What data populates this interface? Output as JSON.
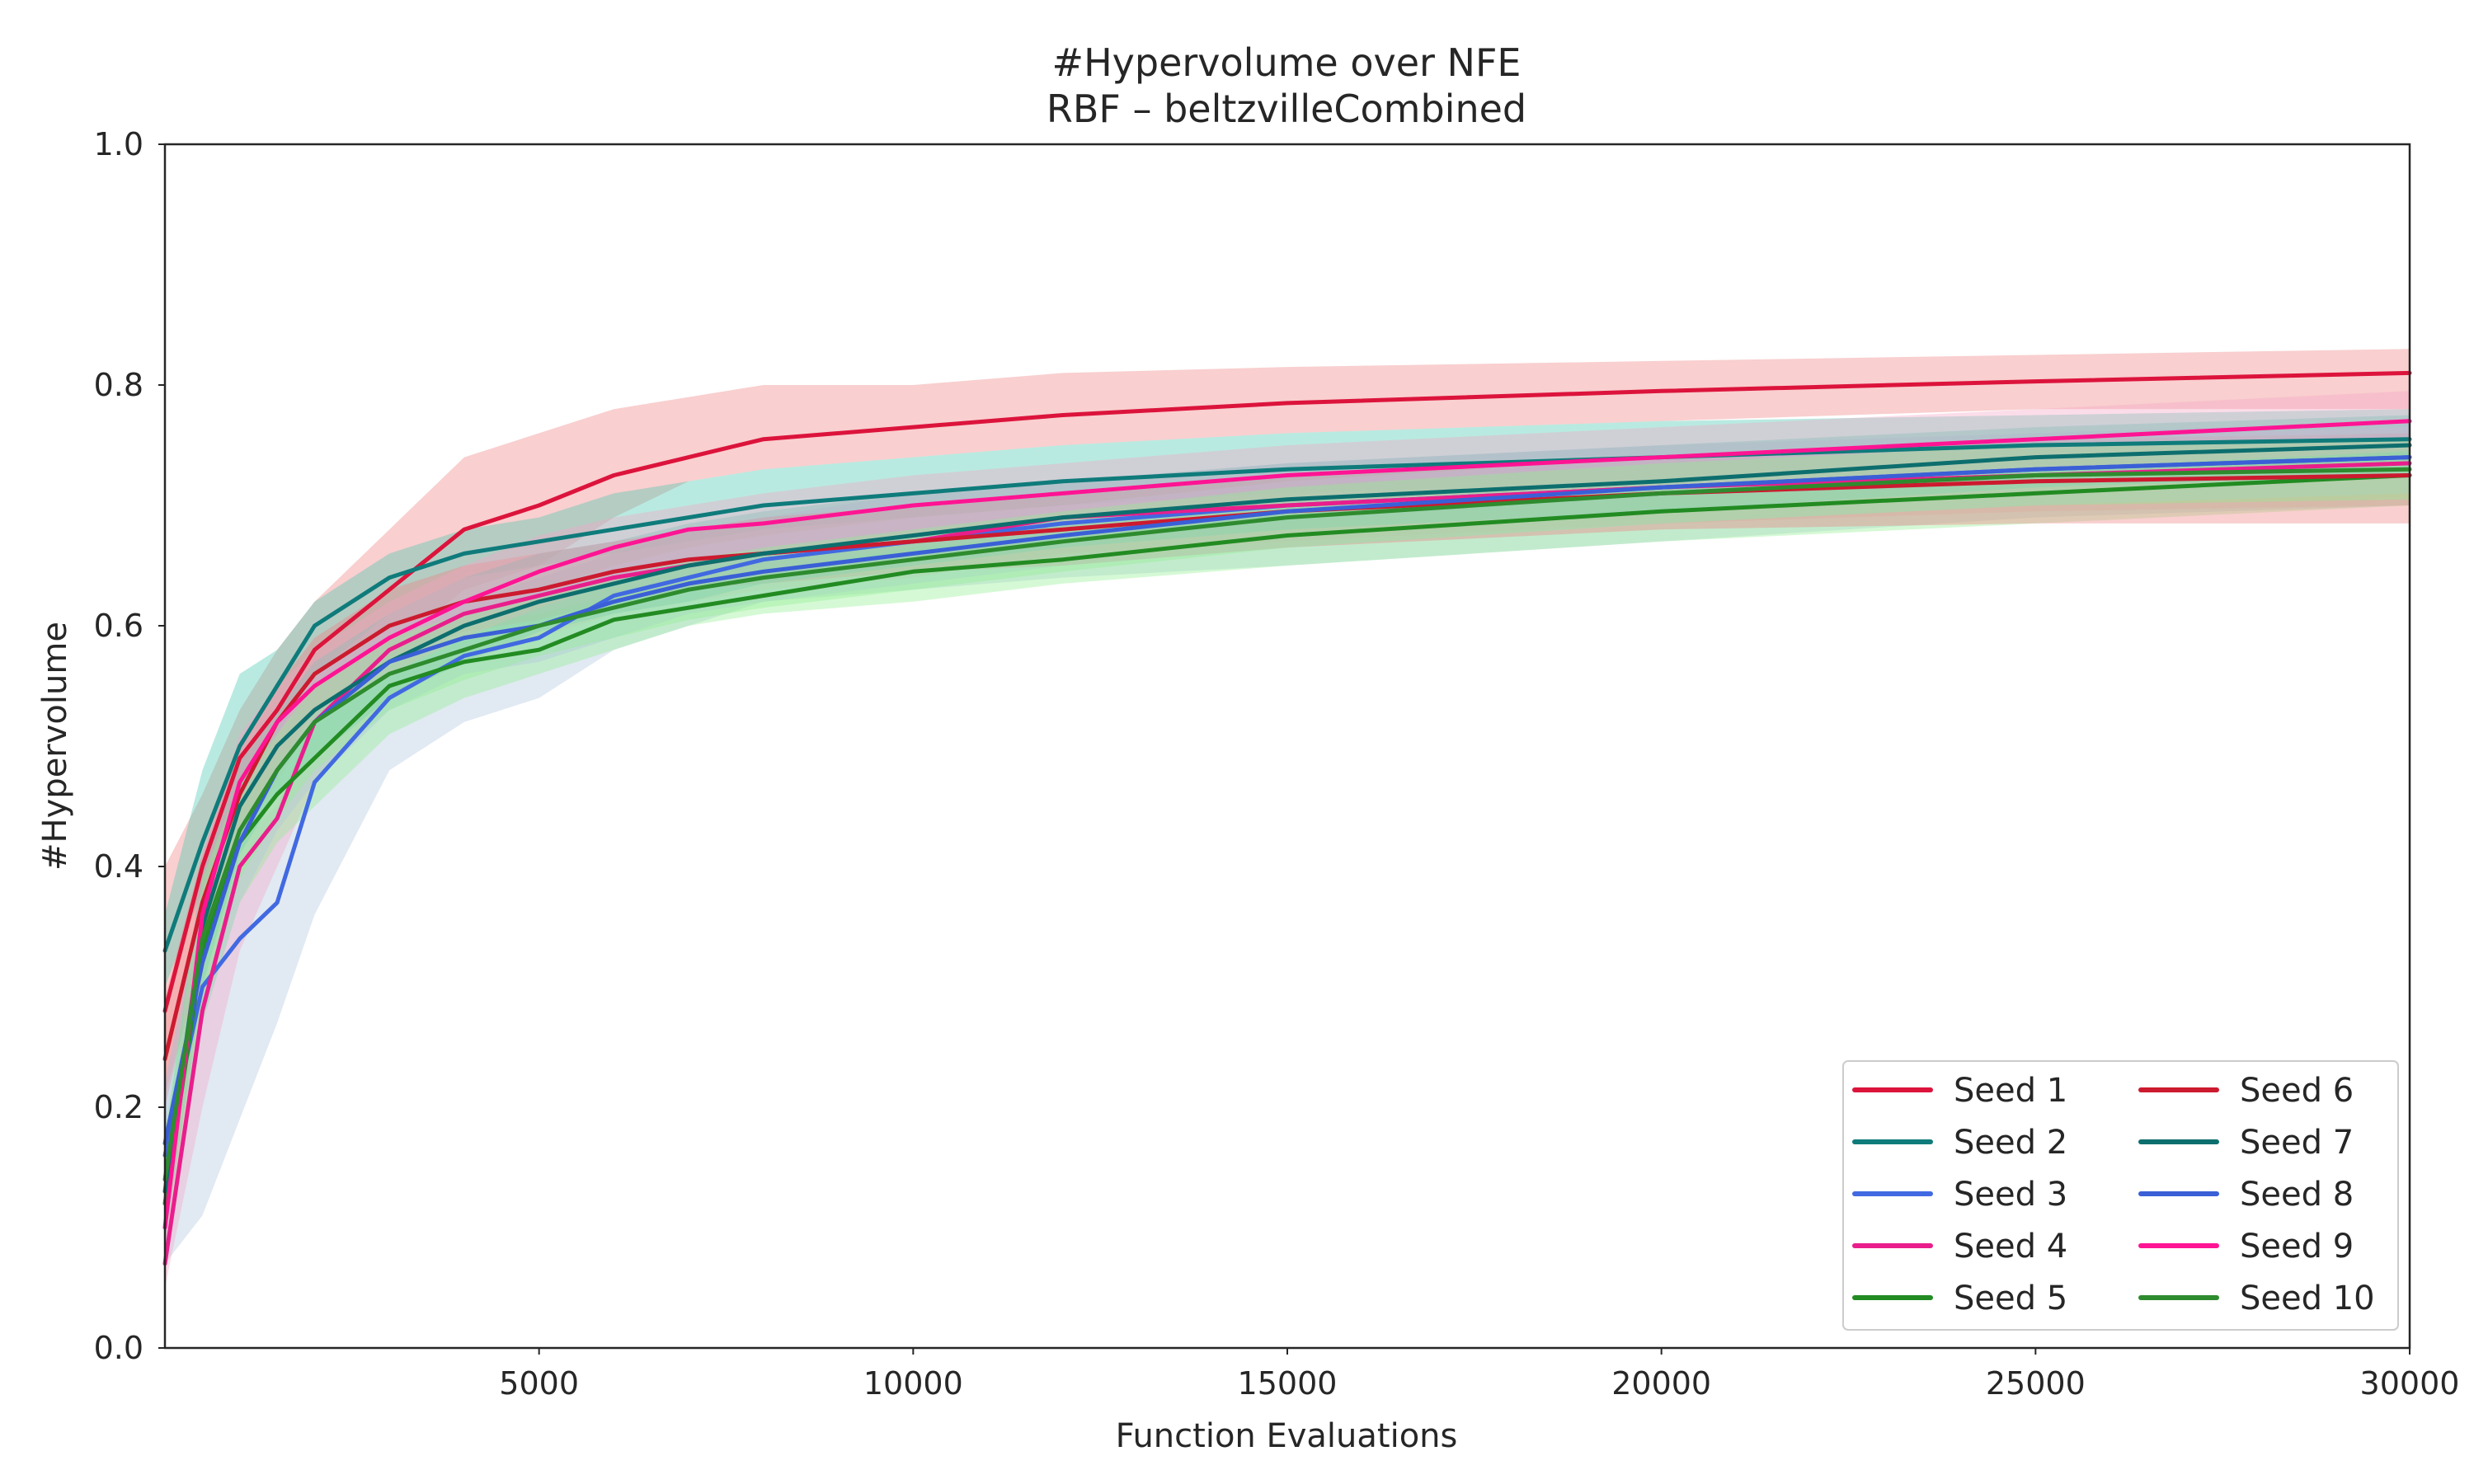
{
  "chart_data": {
    "type": "line",
    "title": "#Hypervolume over NFE",
    "subtitle": "RBF – beltzvilleCombined",
    "xlabel": "Function Evaluations",
    "ylabel": "#Hypervolume",
    "xlim": [
      0,
      30000
    ],
    "ylim": [
      0.0,
      1.0
    ],
    "xticks": [
      5000,
      10000,
      15000,
      20000,
      25000,
      30000
    ],
    "xtick_labels": [
      "5000",
      "10000",
      "15000",
      "20000",
      "25000",
      "30000"
    ],
    "yticks": [
      0.0,
      0.2,
      0.4,
      0.6,
      0.8,
      1.0
    ],
    "ytick_labels": [
      "0.0",
      "0.2",
      "0.4",
      "0.6",
      "0.8",
      "1.0"
    ],
    "grid": false,
    "legend": {
      "placement": "lower-right",
      "columns": 2
    },
    "x": [
      0,
      500,
      1000,
      1500,
      2000,
      3000,
      4000,
      5000,
      6000,
      7000,
      8000,
      10000,
      12000,
      15000,
      20000,
      25000,
      30000
    ],
    "series": [
      {
        "name": "Seed 1",
        "color": "#dc143c",
        "band_color": "#f08080",
        "values": [
          0.28,
          0.4,
          0.49,
          0.53,
          0.58,
          0.63,
          0.68,
          0.7,
          0.725,
          0.74,
          0.755,
          0.765,
          0.775,
          0.785,
          0.795,
          0.803,
          0.81
        ],
        "lower": [
          0.21,
          0.32,
          0.42,
          0.47,
          0.52,
          0.58,
          0.63,
          0.65,
          0.69,
          0.72,
          0.73,
          0.74,
          0.75,
          0.76,
          0.77,
          0.78,
          0.78
        ],
        "upper": [
          0.4,
          0.46,
          0.53,
          0.58,
          0.62,
          0.68,
          0.74,
          0.76,
          0.78,
          0.79,
          0.8,
          0.8,
          0.81,
          0.815,
          0.82,
          0.825,
          0.83
        ]
      },
      {
        "name": "Seed 2",
        "color": "#0f7b7b",
        "band_color": "#48c9b0",
        "values": [
          0.33,
          0.42,
          0.5,
          0.55,
          0.6,
          0.64,
          0.66,
          0.67,
          0.68,
          0.69,
          0.7,
          0.71,
          0.72,
          0.73,
          0.74,
          0.75,
          0.755
        ],
        "lower": [
          0.3,
          0.38,
          0.46,
          0.51,
          0.56,
          0.61,
          0.64,
          0.65,
          0.66,
          0.67,
          0.68,
          0.69,
          0.7,
          0.71,
          0.72,
          0.73,
          0.735
        ],
        "upper": [
          0.36,
          0.48,
          0.56,
          0.58,
          0.62,
          0.66,
          0.68,
          0.69,
          0.71,
          0.72,
          0.73,
          0.74,
          0.75,
          0.76,
          0.77,
          0.775,
          0.78
        ]
      },
      {
        "name": "Seed 3",
        "color": "#4169e1",
        "band_color": "#b0c4de",
        "values": [
          0.16,
          0.3,
          0.34,
          0.37,
          0.47,
          0.54,
          0.575,
          0.59,
          0.625,
          0.64,
          0.655,
          0.67,
          0.685,
          0.7,
          0.715,
          0.73,
          0.74
        ],
        "lower": [
          0.07,
          0.11,
          0.19,
          0.27,
          0.36,
          0.48,
          0.52,
          0.54,
          0.58,
          0.6,
          0.62,
          0.63,
          0.64,
          0.65,
          0.67,
          0.69,
          0.7
        ],
        "upper": [
          0.22,
          0.38,
          0.42,
          0.45,
          0.53,
          0.58,
          0.62,
          0.64,
          0.66,
          0.68,
          0.69,
          0.71,
          0.72,
          0.735,
          0.75,
          0.76,
          0.77
        ]
      },
      {
        "name": "Seed 4",
        "color": "#e91e8c",
        "band_color": "#f4a6c6",
        "values": [
          0.07,
          0.28,
          0.4,
          0.44,
          0.52,
          0.58,
          0.61,
          0.625,
          0.64,
          0.65,
          0.66,
          0.67,
          0.69,
          0.7,
          0.715,
          0.725,
          0.735
        ],
        "lower": [
          0.05,
          0.2,
          0.33,
          0.4,
          0.47,
          0.54,
          0.57,
          0.59,
          0.61,
          0.62,
          0.63,
          0.64,
          0.66,
          0.67,
          0.685,
          0.695,
          0.7
        ],
        "upper": [
          0.12,
          0.34,
          0.45,
          0.5,
          0.56,
          0.61,
          0.64,
          0.66,
          0.67,
          0.68,
          0.69,
          0.7,
          0.71,
          0.725,
          0.74,
          0.75,
          0.76
        ]
      },
      {
        "name": "Seed 5",
        "color": "#228b22",
        "band_color": "#90ee90",
        "values": [
          0.12,
          0.33,
          0.42,
          0.46,
          0.49,
          0.55,
          0.57,
          0.58,
          0.605,
          0.615,
          0.625,
          0.645,
          0.655,
          0.675,
          0.695,
          0.71,
          0.725
        ],
        "lower": [
          0.09,
          0.27,
          0.37,
          0.42,
          0.45,
          0.51,
          0.54,
          0.56,
          0.58,
          0.6,
          0.61,
          0.62,
          0.635,
          0.65,
          0.67,
          0.685,
          0.7
        ],
        "upper": [
          0.16,
          0.37,
          0.45,
          0.49,
          0.52,
          0.58,
          0.6,
          0.61,
          0.625,
          0.635,
          0.645,
          0.665,
          0.675,
          0.695,
          0.715,
          0.73,
          0.745
        ]
      },
      {
        "name": "Seed 6",
        "color": "#cc1a2f",
        "band_color": "#f08080",
        "values": [
          0.24,
          0.37,
          0.46,
          0.52,
          0.56,
          0.6,
          0.62,
          0.63,
          0.645,
          0.655,
          0.66,
          0.67,
          0.68,
          0.695,
          0.71,
          0.72,
          0.725
        ],
        "lower": [
          0.2,
          0.33,
          0.42,
          0.48,
          0.53,
          0.57,
          0.595,
          0.605,
          0.62,
          0.63,
          0.635,
          0.645,
          0.65,
          0.665,
          0.68,
          0.685,
          0.685
        ],
        "upper": [
          0.29,
          0.41,
          0.5,
          0.55,
          0.59,
          0.63,
          0.65,
          0.66,
          0.67,
          0.68,
          0.69,
          0.7,
          0.71,
          0.725,
          0.74,
          0.755,
          0.76
        ]
      },
      {
        "name": "Seed 7",
        "color": "#0d6e6e",
        "band_color": "#48c9b0",
        "values": [
          0.13,
          0.35,
          0.45,
          0.5,
          0.53,
          0.57,
          0.6,
          0.62,
          0.635,
          0.65,
          0.66,
          0.675,
          0.69,
          0.705,
          0.72,
          0.74,
          0.75
        ],
        "lower": [
          0.09,
          0.3,
          0.41,
          0.46,
          0.49,
          0.54,
          0.57,
          0.595,
          0.61,
          0.62,
          0.635,
          0.65,
          0.665,
          0.68,
          0.695,
          0.715,
          0.725
        ],
        "upper": [
          0.17,
          0.4,
          0.49,
          0.53,
          0.57,
          0.61,
          0.64,
          0.66,
          0.67,
          0.685,
          0.695,
          0.71,
          0.72,
          0.735,
          0.75,
          0.765,
          0.775
        ]
      },
      {
        "name": "Seed 8",
        "color": "#3a5fd6",
        "band_color": "#b0c4de",
        "values": [
          0.17,
          0.32,
          0.42,
          0.48,
          0.52,
          0.57,
          0.59,
          0.6,
          0.62,
          0.635,
          0.645,
          0.66,
          0.675,
          0.695,
          0.715,
          0.73,
          0.74
        ],
        "lower": [
          0.12,
          0.27,
          0.37,
          0.43,
          0.47,
          0.53,
          0.56,
          0.57,
          0.59,
          0.61,
          0.62,
          0.635,
          0.65,
          0.665,
          0.685,
          0.7,
          0.71
        ],
        "upper": [
          0.22,
          0.37,
          0.46,
          0.52,
          0.56,
          0.6,
          0.62,
          0.63,
          0.65,
          0.665,
          0.675,
          0.69,
          0.7,
          0.72,
          0.74,
          0.755,
          0.765
        ]
      },
      {
        "name": "Seed 9",
        "color": "#ff1493",
        "band_color": "#f4a6c6",
        "values": [
          0.1,
          0.36,
          0.47,
          0.52,
          0.55,
          0.59,
          0.62,
          0.645,
          0.665,
          0.68,
          0.685,
          0.7,
          0.71,
          0.725,
          0.74,
          0.755,
          0.77
        ],
        "lower": [
          0.07,
          0.31,
          0.43,
          0.48,
          0.52,
          0.56,
          0.59,
          0.615,
          0.635,
          0.65,
          0.66,
          0.675,
          0.685,
          0.7,
          0.715,
          0.73,
          0.745
        ],
        "upper": [
          0.14,
          0.41,
          0.51,
          0.55,
          0.58,
          0.62,
          0.65,
          0.675,
          0.69,
          0.7,
          0.71,
          0.725,
          0.735,
          0.75,
          0.765,
          0.78,
          0.795
        ]
      },
      {
        "name": "Seed 10",
        "color": "#2e8b2e",
        "band_color": "#90ee90",
        "values": [
          0.14,
          0.34,
          0.43,
          0.48,
          0.52,
          0.56,
          0.58,
          0.6,
          0.615,
          0.63,
          0.64,
          0.655,
          0.67,
          0.69,
          0.71,
          0.725,
          0.73
        ],
        "lower": [
          0.1,
          0.29,
          0.39,
          0.44,
          0.48,
          0.53,
          0.555,
          0.575,
          0.59,
          0.605,
          0.615,
          0.63,
          0.645,
          0.665,
          0.685,
          0.7,
          0.705
        ],
        "upper": [
          0.18,
          0.39,
          0.47,
          0.51,
          0.55,
          0.59,
          0.61,
          0.625,
          0.64,
          0.655,
          0.665,
          0.68,
          0.695,
          0.715,
          0.735,
          0.75,
          0.755
        ]
      }
    ]
  }
}
